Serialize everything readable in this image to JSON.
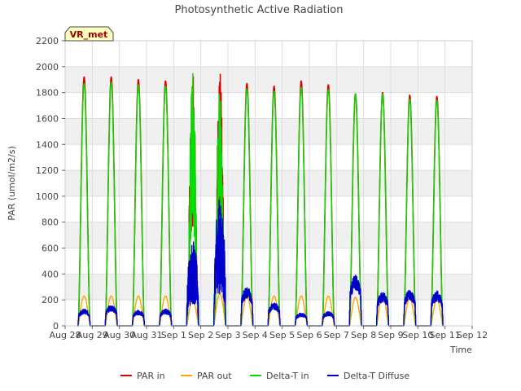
{
  "chart_data": {
    "type": "line",
    "title": "Photosynthetic Active Radiation",
    "xlabel": "Time",
    "ylabel": "PAR (umol/m2/s)",
    "ylim": [
      0,
      2200
    ],
    "xlim": [
      0,
      15
    ],
    "yticks": [
      0,
      200,
      400,
      600,
      800,
      1000,
      1200,
      1400,
      1600,
      1800,
      2000,
      2200
    ],
    "xticks": [
      {
        "v": 0,
        "label": "Aug 28"
      },
      {
        "v": 1,
        "label": "Aug 29"
      },
      {
        "v": 2,
        "label": "Aug 30"
      },
      {
        "v": 3,
        "label": "Aug 31"
      },
      {
        "v": 4,
        "label": "Sep 1"
      },
      {
        "v": 5,
        "label": "Sep 2"
      },
      {
        "v": 6,
        "label": "Sep 3"
      },
      {
        "v": 7,
        "label": "Sep 4"
      },
      {
        "v": 8,
        "label": "Sep 5"
      },
      {
        "v": 9,
        "label": "Sep 6"
      },
      {
        "v": 10,
        "label": "Sep 7"
      },
      {
        "v": 11,
        "label": "Sep 8"
      },
      {
        "v": 12,
        "label": "Sep 9"
      },
      {
        "v": 13,
        "label": "Sep 10"
      },
      {
        "v": 14,
        "label": "Sep 11"
      },
      {
        "v": 15,
        "label": "Sep 12"
      }
    ],
    "grid": true,
    "station_label": "VR_met",
    "legend_position": "bottom",
    "days": [
      0.7,
      1.7,
      2.7,
      3.7,
      4.7,
      5.7,
      6.7,
      7.7,
      8.7,
      9.7,
      10.7,
      11.7,
      12.7,
      13.7
    ],
    "series": [
      {
        "name": "PAR in",
        "color": "#dd0000",
        "daily_peak": [
          1920,
          1920,
          1900,
          1890,
          2020,
          2010,
          1870,
          1850,
          1890,
          1860,
          1790,
          1800,
          1780,
          1770
        ]
      },
      {
        "name": "PAR out",
        "color": "#ffa500",
        "daily_peak": [
          230,
          230,
          230,
          230,
          200,
          250,
          230,
          230,
          230,
          230,
          220,
          230,
          210,
          200
        ]
      },
      {
        "name": "Delta-T in",
        "color": "#00dd00",
        "daily_peak": [
          1870,
          1880,
          1860,
          1850,
          2000,
          1950,
          1830,
          1810,
          1840,
          1820,
          1790,
          1790,
          1750,
          1740
        ]
      },
      {
        "name": "Delta-T Diffuse",
        "color": "#0000cc",
        "daily_peak": [
          130,
          160,
          120,
          130,
          660,
          980,
          300,
          180,
          100,
          110,
          390,
          260,
          280,
          270
        ]
      }
    ]
  }
}
